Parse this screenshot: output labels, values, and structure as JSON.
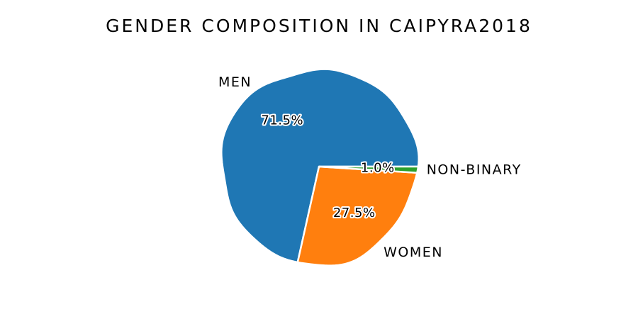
{
  "chart_data": {
    "type": "pie",
    "title": "Gender composition in Caipyra2018",
    "slices": [
      {
        "label": "Men",
        "value": 71.5,
        "pct_label": "71.5%",
        "color": "#1f77b4"
      },
      {
        "label": "Women",
        "value": 27.5,
        "pct_label": "27.5%",
        "color": "#ff7f0e"
      },
      {
        "label": "Non-binary",
        "value": 1.0,
        "pct_label": "1.0%",
        "color": "#2ca02c"
      }
    ],
    "legend": "none",
    "grid": false
  }
}
